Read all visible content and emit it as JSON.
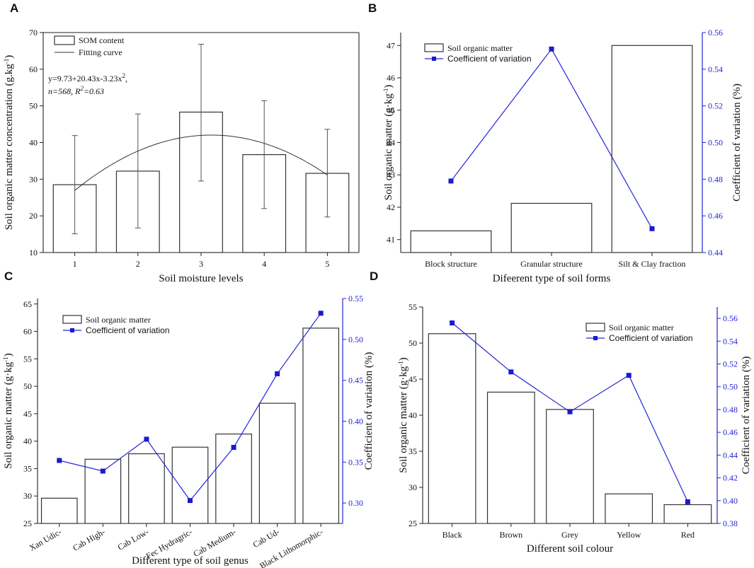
{
  "panels": [
    {
      "letter": "A",
      "chart_data": {
        "type": "bar",
        "categories": [
          "1",
          "2",
          "3",
          "4",
          "5"
        ],
        "values": [
          28.5,
          32.2,
          48.3,
          36.7,
          31.6
        ],
        "error_low": [
          15.1,
          16.7,
          29.5,
          22.0,
          19.7
        ],
        "error_high": [
          41.9,
          47.8,
          66.8,
          51.4,
          43.6
        ],
        "fit": {
          "a": 9.73,
          "b": 20.43,
          "c": -3.23
        },
        "xlabel": "Soil moisture levels",
        "ylabel": "Soil organic matter concentration (g.kg",
        "ylabel_sup": "-1",
        "ylabel_end": ")",
        "ylim": [
          10,
          70
        ],
        "yticks": [
          "10",
          "20",
          "30",
          "40",
          "50",
          "60",
          "70"
        ],
        "legend": [
          "SOM content",
          "Fitting curve"
        ],
        "equation_line1": "y=9.73+20.43x-3.23x",
        "equation_sup": "2",
        "equation_line1_end": ",",
        "equation_line2_n": "n=568, R",
        "equation_line2_sup": "2",
        "equation_line2_end": "=0.63"
      }
    },
    {
      "letter": "B",
      "chart_data": {
        "type": "bar",
        "categories": [
          "Block structure",
          "Granular structure",
          "Silt & Clay fraction"
        ],
        "values": [
          41.27,
          42.12,
          47.0
        ],
        "cv": [
          0.479,
          0.551,
          0.453
        ],
        "xlabel": "Difeerent type of soil forms",
        "ylabel": "Soil organic matter (g·kg",
        "ylabel_sup": "-1",
        "ylabel_end": ")",
        "y2label": "Coefficient of variation (%)",
        "ylim": [
          40.6,
          47.4
        ],
        "yticks": [
          "41",
          "42",
          "43",
          "44",
          "45",
          "46",
          "47"
        ],
        "y2lim": [
          0.44,
          0.56
        ],
        "y2ticks": [
          "0.44",
          "0.46",
          "0.48",
          "0.50",
          "0.52",
          "0.54",
          "0.56"
        ],
        "legend": [
          "Soil organic matter",
          "Coefficient of variation"
        ]
      }
    },
    {
      "letter": "C",
      "chart_data": {
        "type": "bar",
        "categories": [
          "Xan Udic-",
          "Cab High-",
          "Cab Low-",
          "Fec Hydragric-",
          "Cab Medium-",
          "Cab Ud-",
          "Black Lithomorphic-"
        ],
        "values": [
          29.6,
          36.7,
          37.7,
          38.9,
          41.3,
          46.9,
          60.6
        ],
        "cv": [
          0.352,
          0.339,
          0.378,
          0.303,
          0.368,
          0.458,
          0.532
        ],
        "xlabel": "Different type of soil genus",
        "ylabel": "Soil organic matter (g·kg",
        "ylabel_sup": "-1",
        "ylabel_end": ")",
        "y2label": "Coefficient of variation (%)",
        "ylim": [
          25,
          66
        ],
        "yticks": [
          "25",
          "30",
          "35",
          "40",
          "45",
          "50",
          "55",
          "60",
          "65"
        ],
        "y2lim": [
          0.275,
          0.55
        ],
        "y2ticks": [
          "0.30",
          "0.35",
          "0.40",
          "0.45",
          "0.50",
          "0.55"
        ],
        "legend": [
          "Soil organic matter",
          "Coefficient of variation"
        ]
      }
    },
    {
      "letter": "D",
      "chart_data": {
        "type": "bar",
        "categories": [
          "Black",
          "Brown",
          "Grey",
          "Yellow",
          "Red"
        ],
        "values": [
          51.3,
          43.2,
          40.8,
          29.1,
          27.6
        ],
        "cv": [
          0.556,
          0.513,
          0.478,
          0.51,
          0.399
        ],
        "xlabel": "Different soil colour",
        "ylabel": "Soil organic matter (g·kg",
        "ylabel_sup": "-1",
        "ylabel_end": ")",
        "y2label": "Coefficient of variation (%)",
        "ylim": [
          25,
          55
        ],
        "yticks": [
          "25",
          "30",
          "35",
          "40",
          "45",
          "50",
          "55"
        ],
        "y2lim": [
          0.38,
          0.57
        ],
        "y2ticks": [
          "0.38",
          "0.40",
          "0.42",
          "0.44",
          "0.46",
          "0.48",
          "0.50",
          "0.52",
          "0.54",
          "0.56"
        ],
        "legend": [
          "Soil organic matter",
          "Coefficient of variation"
        ]
      }
    }
  ]
}
